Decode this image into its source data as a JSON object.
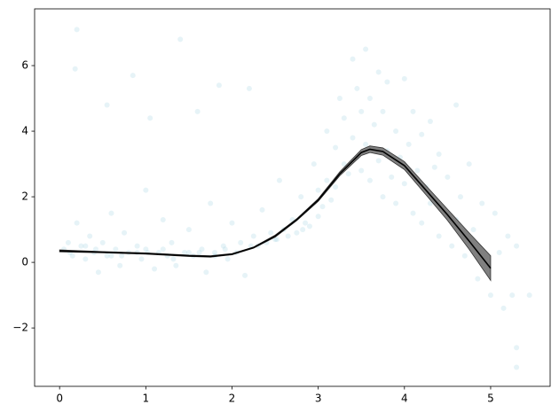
{
  "chart_data": {
    "type": "scatter",
    "xlim": [
      -0.29,
      5.69
    ],
    "ylim": [
      -3.78,
      7.73
    ],
    "xticks": [
      0,
      1,
      2,
      3,
      4,
      5
    ],
    "yticks": [
      {
        "value": -2,
        "label": "−2"
      },
      0,
      2,
      4,
      6
    ],
    "grid": false,
    "points": {
      "color": "#add8e6",
      "x": [
        0.05,
        0.1,
        0.15,
        0.2,
        0.2,
        0.18,
        0.25,
        0.3,
        0.35,
        0.4,
        0.45,
        0.5,
        0.55,
        0.55,
        0.6,
        0.65,
        0.7,
        0.75,
        0.8,
        0.85,
        0.9,
        0.95,
        1.0,
        1.0,
        1.05,
        1.1,
        1.15,
        1.2,
        1.25,
        1.3,
        1.35,
        1.4,
        1.45,
        1.5,
        1.55,
        1.6,
        1.65,
        1.7,
        1.75,
        1.8,
        1.85,
        1.9,
        1.95,
        2.0,
        2.05,
        2.1,
        2.15,
        2.2,
        2.25,
        2.3,
        2.35,
        2.4,
        2.45,
        2.5,
        2.55,
        2.6,
        2.65,
        2.7,
        2.75,
        2.8,
        2.85,
        2.9,
        2.95,
        3.0,
        3.0,
        3.05,
        3.1,
        3.1,
        3.15,
        3.2,
        3.2,
        3.25,
        3.3,
        3.3,
        3.35,
        3.4,
        3.4,
        3.45,
        3.45,
        3.5,
        3.5,
        3.55,
        3.55,
        3.6,
        3.6,
        3.65,
        3.7,
        3.7,
        3.75,
        3.75,
        3.8,
        3.8,
        3.85,
        3.9,
        3.9,
        3.95,
        4.0,
        4.0,
        4.05,
        4.1,
        4.1,
        4.15,
        4.2,
        4.2,
        4.25,
        4.3,
        4.3,
        4.35,
        4.4,
        4.4,
        4.45,
        4.5,
        4.55,
        4.6,
        4.6,
        4.65,
        4.7,
        4.75,
        4.8,
        4.85,
        4.9,
        4.95,
        5.0,
        5.05,
        5.1,
        5.15,
        5.2,
        5.25,
        5.3,
        5.3,
        5.45,
        5.3,
        0.3,
        0.6,
        0.9,
        1.2,
        1.5,
        1.8,
        0.12,
        0.42,
        0.72,
        1.02,
        1.32,
        1.62,
        1.92,
        2.22,
        2.52,
        2.82
      ],
      "y": [
        0.4,
        0.6,
        0.2,
        1.2,
        7.1,
        5.9,
        0.5,
        0.1,
        0.8,
        0.3,
        -0.3,
        0.6,
        4.8,
        0.2,
        1.5,
        0.4,
        -0.1,
        0.9,
        0.3,
        5.7,
        0.5,
        0.1,
        2.2,
        0.4,
        4.4,
        -0.2,
        0.3,
        1.3,
        0.2,
        0.6,
        -0.1,
        6.8,
        0.3,
        1.0,
        0.2,
        4.6,
        0.4,
        -0.3,
        1.8,
        0.3,
        5.4,
        0.5,
        0.1,
        1.2,
        0.3,
        0.6,
        -0.4,
        5.3,
        0.8,
        0.5,
        1.6,
        0.6,
        0.9,
        0.7,
        2.5,
        1.0,
        0.8,
        1.3,
        0.9,
        2.0,
        1.2,
        1.1,
        3.0,
        1.4,
        2.2,
        1.7,
        4.0,
        2.5,
        1.9,
        3.5,
        2.3,
        5.0,
        3.0,
        4.4,
        2.7,
        6.2,
        3.8,
        5.3,
        3.2,
        4.6,
        2.8,
        6.5,
        3.6,
        5.0,
        2.5,
        4.2,
        5.8,
        3.1,
        2.0,
        4.6,
        3.4,
        5.5,
        2.6,
        4.0,
        1.8,
        3.2,
        5.6,
        2.4,
        3.6,
        1.5,
        4.6,
        2.8,
        3.9,
        1.2,
        2.3,
        4.3,
        1.8,
        2.9,
        0.8,
        3.3,
        1.6,
        2.6,
        0.5,
        4.8,
        1.3,
        2.0,
        0.2,
        3.0,
        1.0,
        -0.5,
        1.8,
        0.1,
        -1.0,
        1.5,
        0.3,
        -1.4,
        0.8,
        -1.0,
        -2.6,
        0.5,
        -1.0,
        -3.2,
        0.5,
        0.2,
        0.3,
        0.4,
        0.3,
        0.2,
        0.3,
        0.4,
        0.2,
        0.3,
        0.1,
        0.3,
        0.4,
        0.5,
        0.7,
        1.0
      ]
    },
    "fit": {
      "color": "#000000",
      "band_color": "#808080",
      "x": [
        0,
        0.5,
        1,
        1.5,
        1.75,
        2,
        2.25,
        2.5,
        2.75,
        3,
        3.25,
        3.5,
        3.6,
        3.75,
        4,
        4.25,
        4.5,
        4.75,
        5
      ],
      "y": [
        0.35,
        0.31,
        0.27,
        0.2,
        0.18,
        0.25,
        0.45,
        0.8,
        1.3,
        1.9,
        2.7,
        3.35,
        3.45,
        3.38,
        2.95,
        2.2,
        1.45,
        0.65,
        -0.18
      ],
      "lower": [
        0.32,
        0.29,
        0.25,
        0.18,
        0.16,
        0.23,
        0.43,
        0.77,
        1.27,
        1.86,
        2.64,
        3.26,
        3.35,
        3.27,
        2.83,
        2.06,
        1.28,
        0.4,
        -0.55
      ],
      "upper": [
        0.38,
        0.33,
        0.29,
        0.22,
        0.2,
        0.27,
        0.47,
        0.83,
        1.33,
        1.94,
        2.76,
        3.44,
        3.55,
        3.49,
        3.07,
        2.34,
        1.62,
        0.9,
        0.2
      ]
    }
  }
}
